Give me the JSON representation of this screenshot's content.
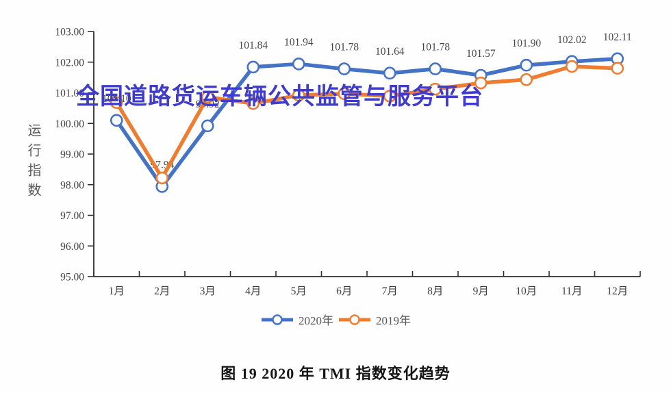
{
  "watermark": {
    "text": "全国道路货运车辆公共监管与服务平台",
    "color": "#3f3ccb"
  },
  "chart_data": {
    "type": "line",
    "title": "图 19  2020 年 TMI 指数变化趋势",
    "ylabel": "运行指数",
    "xlabel": "",
    "ylim": [
      95,
      103
    ],
    "grid": false,
    "legend_position": "bottom",
    "ytick_labels": [
      "103.00",
      "102.00",
      "101.00",
      "100.00",
      "99.00",
      "98.00",
      "97.00",
      "96.00",
      "95.00"
    ],
    "categories": [
      "1月",
      "2月",
      "3月",
      "4月",
      "5月",
      "6月",
      "7月",
      "8月",
      "9月",
      "10月",
      "11月",
      "12月"
    ],
    "series": [
      {
        "name": "2020年",
        "color": "#4472c4",
        "show_labels": true,
        "values": [
          100.1,
          97.94,
          99.92,
          101.84,
          101.94,
          101.78,
          101.64,
          101.78,
          101.57,
          101.9,
          102.02,
          102.11
        ]
      },
      {
        "name": "2019年",
        "color": "#ed7d31",
        "show_labels": false,
        "values": [
          100.68,
          98.22,
          100.86,
          100.65,
          100.92,
          100.97,
          100.89,
          101.12,
          101.32,
          101.43,
          101.86,
          101.8
        ]
      }
    ],
    "label_color": "#474747",
    "axis_color": "#2e2e2e",
    "tick_text_color": "#3f3f3f"
  }
}
